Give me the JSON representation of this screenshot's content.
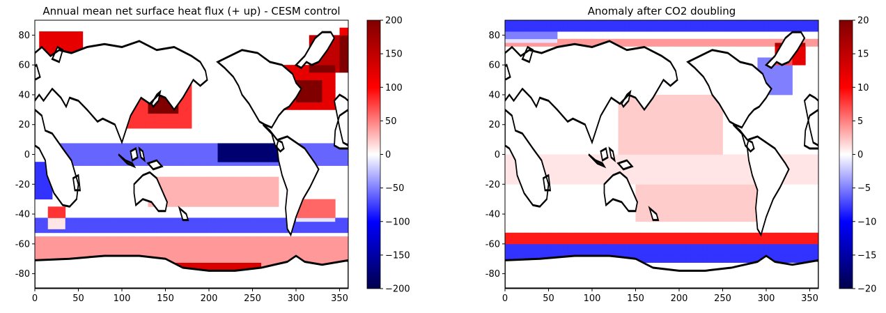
{
  "chart_data": [
    {
      "type": "heatmap",
      "title": "Annual mean net surface heat flux (+ up) - CESM control",
      "xlabel": "",
      "ylabel": "",
      "xlim": [
        0,
        360
      ],
      "ylim": [
        -90,
        90
      ],
      "xticks": [
        0,
        50,
        100,
        150,
        200,
        250,
        300,
        350
      ],
      "yticks": [
        -80,
        -60,
        -40,
        -20,
        0,
        20,
        40,
        60,
        80
      ],
      "colormap": "seismic",
      "colorbar": {
        "range": [
          -200,
          200
        ],
        "ticks": [
          -200,
          -150,
          -100,
          -50,
          0,
          50,
          100,
          150,
          200
        ]
      },
      "features": [
        {
          "lon": [
            5,
            55
          ],
          "lat": [
            62,
            82
          ],
          "value": 120
        },
        {
          "lon": [
            100,
            180
          ],
          "lat": [
            18,
            50
          ],
          "value": 80
        },
        {
          "lon": [
            130,
            165
          ],
          "lat": [
            28,
            45
          ],
          "value": 150
        },
        {
          "lon": [
            280,
            345
          ],
          "lat": [
            30,
            60
          ],
          "value": 120
        },
        {
          "lon": [
            300,
            330
          ],
          "lat": [
            35,
            50
          ],
          "value": 160
        },
        {
          "lon": [
            315,
            360
          ],
          "lat": [
            55,
            80
          ],
          "value": 150
        },
        {
          "lon": [
            350,
            360
          ],
          "lat": [
            55,
            85
          ],
          "value": 110
        },
        {
          "lon": [
            0,
            360
          ],
          "lat": [
            -85,
            -55
          ],
          "value": 40
        },
        {
          "lon": [
            0,
            360
          ],
          "lat": [
            -52,
            -42
          ],
          "value": -70
        },
        {
          "lon": [
            150,
            260
          ],
          "lat": [
            -80,
            -72
          ],
          "value": 90
        },
        {
          "lon": [
            20,
            360
          ],
          "lat": [
            -8,
            8
          ],
          "value": -60
        },
        {
          "lon": [
            210,
            290
          ],
          "lat": [
            -5,
            8
          ],
          "value": -120
        },
        {
          "lon": [
            0,
            20
          ],
          "lat": [
            -30,
            -5
          ],
          "value": -80
        },
        {
          "lon": [
            130,
            280
          ],
          "lat": [
            -35,
            -15
          ],
          "value": 30
        },
        {
          "lon": [
            300,
            345
          ],
          "lat": [
            -45,
            -30
          ],
          "value": 60
        },
        {
          "lon": [
            15,
            35
          ],
          "lat": [
            -50,
            -35
          ],
          "value": 80
        }
      ]
    },
    {
      "type": "heatmap",
      "title": "Anomaly after CO2 doubling",
      "xlabel": "",
      "ylabel": "",
      "xlim": [
        0,
        360
      ],
      "ylim": [
        -90,
        90
      ],
      "xticks": [
        0,
        50,
        100,
        150,
        200,
        250,
        300,
        350
      ],
      "yticks": [
        -80,
        -60,
        -40,
        -20,
        0,
        20,
        40,
        60,
        80
      ],
      "colormap": "seismic",
      "colorbar": {
        "range": [
          -20,
          20
        ],
        "ticks": [
          -20,
          -15,
          -10,
          -5,
          0,
          5,
          10,
          15,
          20
        ]
      },
      "features": [
        {
          "lon": [
            0,
            360
          ],
          "lat": [
            82,
            90
          ],
          "value": -8
        },
        {
          "lon": [
            0,
            360
          ],
          "lat": [
            72,
            78
          ],
          "value": 4
        },
        {
          "lon": [
            0,
            60
          ],
          "lat": [
            74,
            82
          ],
          "value": -5
        },
        {
          "lon": [
            310,
            345
          ],
          "lat": [
            60,
            75
          ],
          "value": 12
        },
        {
          "lon": [
            290,
            330
          ],
          "lat": [
            40,
            65
          ],
          "value": -5
        },
        {
          "lon": [
            130,
            250
          ],
          "lat": [
            0,
            40
          ],
          "value": 2
        },
        {
          "lon": [
            0,
            360
          ],
          "lat": [
            -60,
            -52
          ],
          "value": 9
        },
        {
          "lon": [
            0,
            360
          ],
          "lat": [
            -72,
            -60
          ],
          "value": -8
        },
        {
          "lon": [
            150,
            290
          ],
          "lat": [
            -45,
            -20
          ],
          "value": 2
        },
        {
          "lon": [
            0,
            360
          ],
          "lat": [
            -20,
            0
          ],
          "value": 1
        }
      ]
    }
  ]
}
